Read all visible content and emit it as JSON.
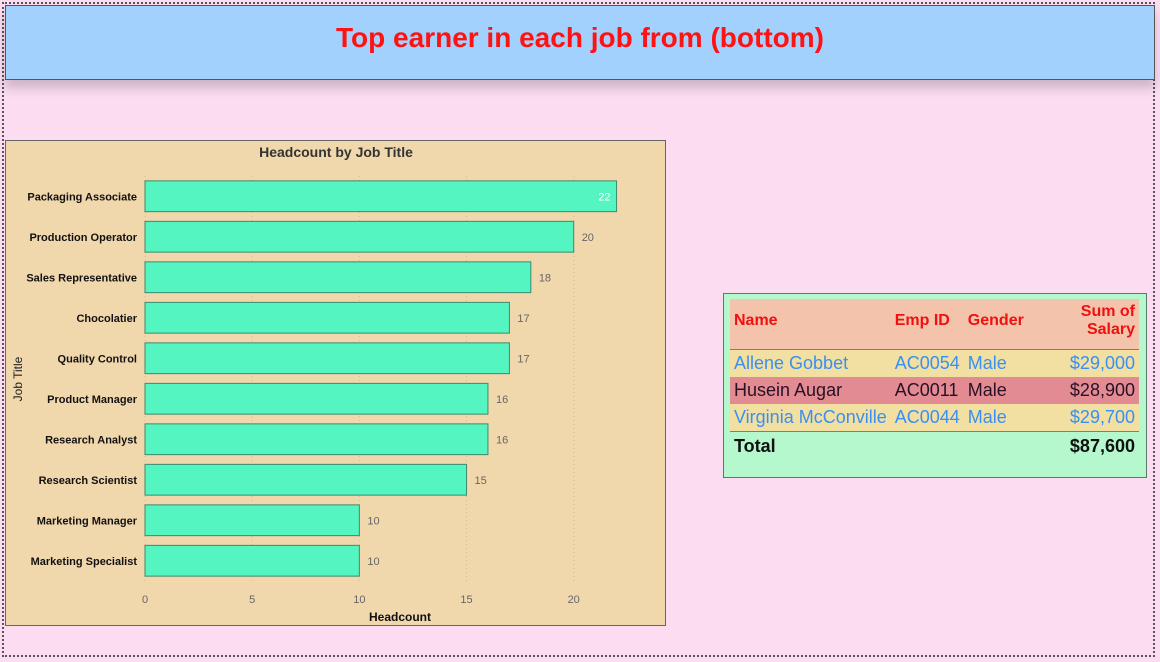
{
  "page": {
    "title": "Top earner in each job from (bottom)"
  },
  "colors": {
    "background": "#fbdcf0",
    "banner": "#a3d1fd",
    "title": "#ff1212",
    "chart_bg": "#f1d7ac",
    "bar": "#55f5c2",
    "table_bg": "#b5f8cd"
  },
  "chart_data": {
    "type": "bar",
    "orientation": "horizontal",
    "title": "Headcount by Job Title",
    "xlabel": "Headcount",
    "ylabel": "Job Title",
    "categories": [
      "Packaging Associate",
      "Production Operator",
      "Sales Representative",
      "Chocolatier",
      "Quality Control",
      "Product Manager",
      "Research Analyst",
      "Research Scientist",
      "Marketing Manager",
      "Marketing Specialist"
    ],
    "values": [
      22,
      20,
      18,
      17,
      17,
      16,
      16,
      15,
      10,
      10
    ],
    "xticks": [
      0,
      5,
      10,
      15,
      20
    ],
    "xlim": [
      0,
      23
    ],
    "grid": true,
    "data_labels": true
  },
  "table": {
    "columns": [
      "Name",
      "Emp ID",
      "Gender",
      "Sum of Salary"
    ],
    "rows": [
      {
        "name": "Allene Gobbet",
        "emp_id": "AC0054",
        "gender": "Male",
        "salary": "$29,000"
      },
      {
        "name": "Husein Augar",
        "emp_id": "AC0011",
        "gender": "Male",
        "salary": "$28,900"
      },
      {
        "name": "Virginia McConville",
        "emp_id": "AC0044",
        "gender": "Male",
        "salary": "$29,700"
      }
    ],
    "total_label": "Total",
    "total_value": "$87,600"
  }
}
